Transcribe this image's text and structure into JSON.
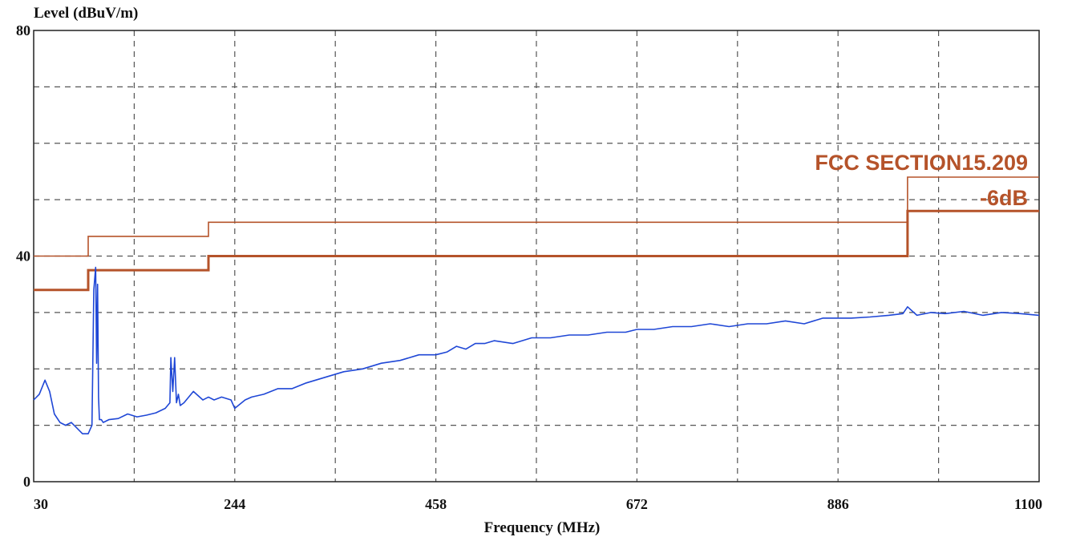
{
  "chart_data": {
    "type": "line",
    "ylabel": "Level (dBuV/m)",
    "xlabel": "Frequency (MHz)",
    "xlim": [
      30,
      1100
    ],
    "ylim": [
      0,
      80
    ],
    "x_ticks": [
      30,
      244,
      458,
      672,
      886,
      1100
    ],
    "y_ticks": [
      0,
      40,
      80
    ],
    "grid": true,
    "colors": {
      "measurement": "#1f47d6",
      "limit": "#b5532a",
      "grid": "#555555"
    },
    "annotations": {
      "limit_label": "FCC SECTION15.209",
      "margin_label": "-6dB"
    },
    "series": [
      {
        "role": "limit",
        "x": [
          30,
          88,
          88,
          216,
          216,
          960,
          960,
          1100
        ],
        "y": [
          40,
          40,
          43.5,
          43.5,
          46,
          46,
          54,
          54
        ]
      },
      {
        "role": "limit-margin",
        "x": [
          30,
          88,
          88,
          216,
          216,
          960,
          960,
          1100
        ],
        "y": [
          34,
          34,
          37.5,
          37.5,
          40,
          40,
          48,
          48
        ]
      },
      {
        "role": "measurement",
        "x": [
          30,
          36,
          42,
          47,
          52,
          58,
          64,
          70,
          76,
          82,
          88,
          92,
          94,
          96,
          97,
          98,
          99,
          100,
          102,
          104,
          110,
          120,
          130,
          140,
          150,
          160,
          170,
          175,
          176,
          178,
          180,
          182,
          184,
          186,
          190,
          200,
          210,
          216,
          222,
          230,
          240,
          244,
          255,
          262,
          275,
          290,
          305,
          320,
          340,
          360,
          380,
          400,
          420,
          440,
          458,
          470,
          480,
          490,
          500,
          510,
          520,
          540,
          560,
          580,
          600,
          620,
          640,
          660,
          672,
          690,
          710,
          730,
          750,
          770,
          790,
          810,
          830,
          850,
          870,
          886,
          900,
          920,
          940,
          955,
          960,
          970,
          985,
          1000,
          1020,
          1040,
          1060,
          1080,
          1100
        ],
        "y": [
          14.5,
          15.5,
          18,
          16,
          12,
          10.5,
          10,
          10.5,
          9.5,
          8.5,
          8.5,
          10,
          34,
          38,
          21,
          35,
          15,
          11,
          11,
          10.5,
          11,
          11.2,
          12,
          11.5,
          11.8,
          12.2,
          13,
          14,
          22,
          16,
          22,
          14,
          15.5,
          13.5,
          14,
          16,
          14.5,
          15,
          14.5,
          15,
          14.5,
          13,
          14.5,
          15,
          15.5,
          16.5,
          16.5,
          17.5,
          18.5,
          19.5,
          20,
          21,
          21.5,
          22.5,
          22.5,
          23,
          24,
          23.5,
          24.5,
          24.5,
          25,
          24.5,
          25.5,
          25.5,
          26,
          26,
          26.5,
          26.5,
          27,
          27,
          27.5,
          27.5,
          28,
          27.5,
          28,
          28,
          28.5,
          28,
          29,
          29,
          29,
          29.2,
          29.5,
          29.8,
          31,
          29.5,
          30,
          29.8,
          30.2,
          29.5,
          30,
          29.8,
          29.5
        ]
      }
    ]
  }
}
